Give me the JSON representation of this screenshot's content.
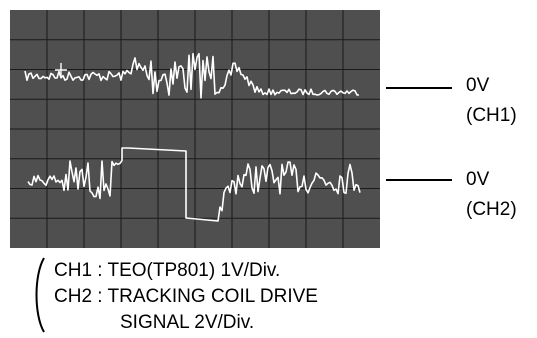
{
  "screen": {
    "background": "#4f4f4f",
    "grid_color": "#1a1a1a",
    "trace_color": "#ffffff",
    "grid_divisions": {
      "horizontal": 10,
      "vertical": 8
    }
  },
  "markers": [
    {
      "id": "ch1",
      "level": "0V",
      "channel": "(CH1)"
    },
    {
      "id": "ch2",
      "level": "0V",
      "channel": "(CH2)"
    }
  ],
  "legend": {
    "lines": [
      "CH1 : TEO(TP801) 1V/Div.",
      "CH2 : TRACKING COIL DRIVE",
      "SIGNAL 2V/Div."
    ]
  }
}
